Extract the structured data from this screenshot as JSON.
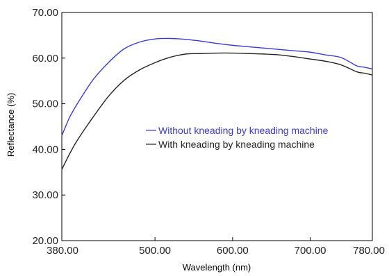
{
  "chart_data": {
    "type": "line",
    "title": "",
    "xlabel": "Wavelength (nm)",
    "ylabel": "Reflectance (%)",
    "xlim": [
      380,
      780
    ],
    "ylim": [
      20,
      70
    ],
    "x_ticks": [
      380,
      500,
      600,
      700,
      780
    ],
    "x_tick_labels": [
      "380.00",
      "500.00",
      "600.00",
      "700.00",
      "780.00"
    ],
    "y_ticks": [
      20,
      30,
      40,
      50,
      60,
      70
    ],
    "y_tick_labels": [
      "20.00",
      "30.00",
      "40.00",
      "50.00",
      "60.00",
      "70.00"
    ],
    "grid": false,
    "legend_position": "center",
    "series": [
      {
        "name": "Without kneading by kneading machine",
        "color": "#3a3acc",
        "x": [
          380,
          390,
          400,
          420,
          440,
          460,
          480,
          500,
          520,
          540,
          560,
          580,
          600,
          620,
          640,
          660,
          680,
          700,
          720,
          740,
          760,
          770,
          780
        ],
        "y": [
          43.0,
          47.0,
          50.0,
          55.2,
          59.0,
          62.0,
          63.5,
          64.2,
          64.3,
          64.1,
          63.7,
          63.2,
          62.8,
          62.5,
          62.2,
          61.9,
          61.6,
          61.3,
          60.7,
          60.1,
          58.3,
          58.0,
          57.6
        ]
      },
      {
        "name": "With kneading by kneading machine",
        "color": "#222222",
        "x": [
          380,
          390,
          400,
          420,
          440,
          460,
          480,
          500,
          520,
          540,
          560,
          580,
          600,
          620,
          640,
          660,
          680,
          700,
          720,
          740,
          760,
          770,
          780
        ],
        "y": [
          35.6,
          39.0,
          42.0,
          47.0,
          51.6,
          55.1,
          57.4,
          59.0,
          60.2,
          60.9,
          61.0,
          61.1,
          61.1,
          61.0,
          60.9,
          60.7,
          60.3,
          59.8,
          59.3,
          58.5,
          57.0,
          56.7,
          56.3
        ]
      }
    ]
  }
}
